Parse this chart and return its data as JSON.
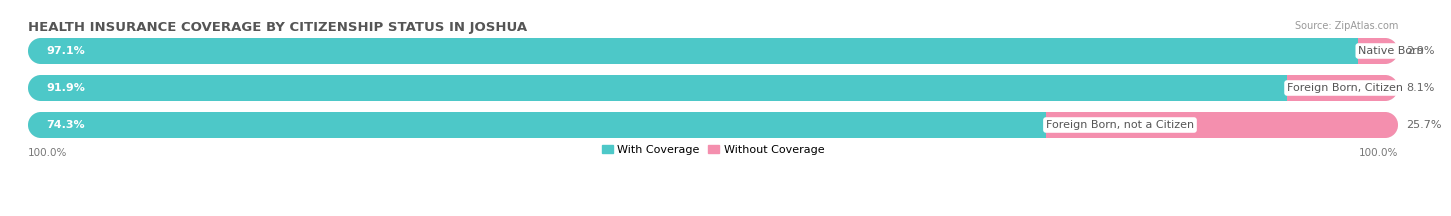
{
  "title": "HEALTH INSURANCE COVERAGE BY CITIZENSHIP STATUS IN JOSHUA",
  "source": "Source: ZipAtlas.com",
  "categories": [
    "Native Born",
    "Foreign Born, Citizen",
    "Foreign Born, not a Citizen"
  ],
  "with_coverage": [
    97.1,
    91.9,
    74.3
  ],
  "without_coverage": [
    2.9,
    8.1,
    25.7
  ],
  "color_with": "#4DC8C8",
  "color_without": "#F48FAE",
  "color_bg": "#E8E8E8",
  "label_left_100": "100.0%",
  "label_right_100": "100.0%",
  "title_fontsize": 9.5,
  "label_fontsize": 8.0,
  "tick_fontsize": 7.5,
  "legend_fontsize": 8.0,
  "source_fontsize": 7.0
}
